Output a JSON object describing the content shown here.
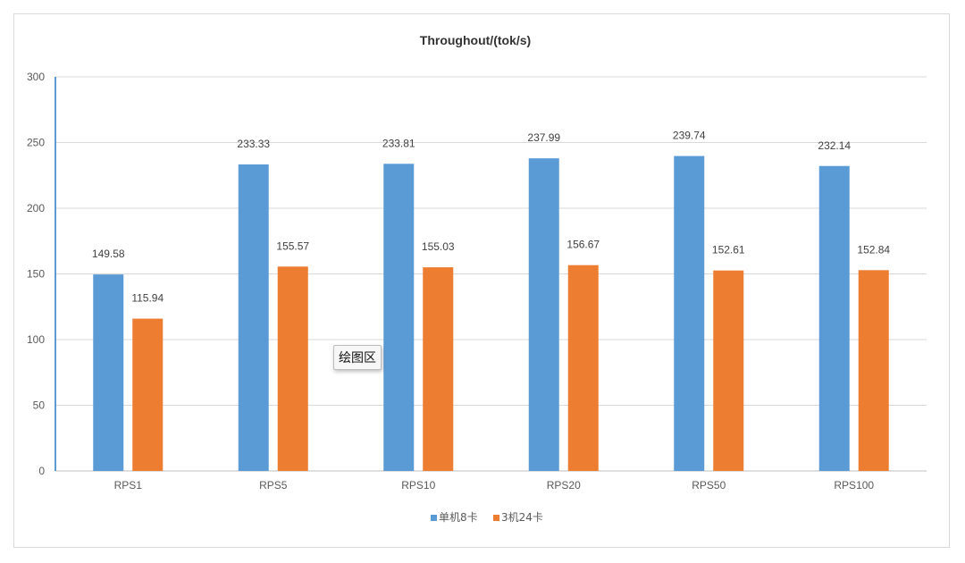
{
  "tooltip": "绘图区",
  "chart_data": {
    "type": "bar",
    "title": "Throughout/(tok/s)",
    "xlabel": "",
    "ylabel": "",
    "categories": [
      "RPS1",
      "RPS5",
      "RPS10",
      "RPS20",
      "RPS50",
      "RPS100"
    ],
    "series": [
      {
        "name": "单机8卡",
        "color": "#5b9bd5",
        "values": [
          149.58,
          233.33,
          233.81,
          237.99,
          239.74,
          232.14
        ]
      },
      {
        "name": "3机24卡",
        "color": "#ed7d31",
        "values": [
          115.94,
          155.57,
          155.03,
          156.67,
          152.61,
          152.84
        ]
      }
    ],
    "ylim": [
      0,
      300
    ],
    "yticks": [
      0,
      50,
      100,
      150,
      200,
      250,
      300
    ],
    "grid": true,
    "legend": "bottom-center"
  }
}
